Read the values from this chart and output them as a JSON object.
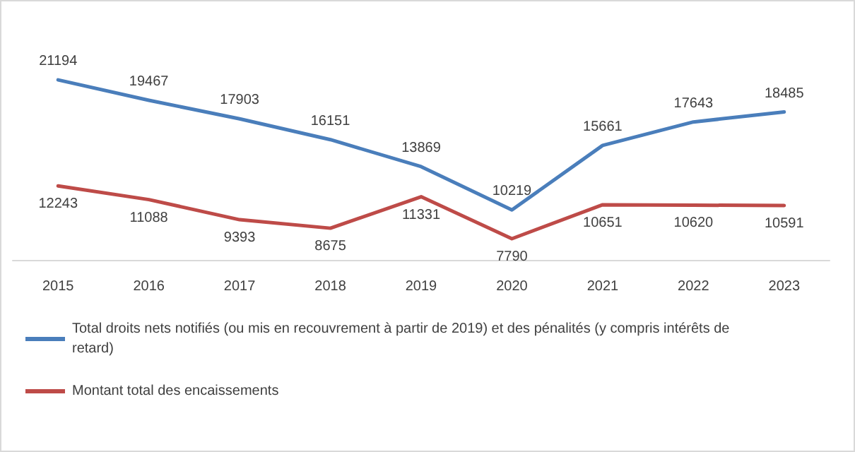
{
  "chart_data": {
    "type": "line",
    "categories": [
      "2015",
      "2016",
      "2017",
      "2018",
      "2019",
      "2020",
      "2021",
      "2022",
      "2023"
    ],
    "series": [
      {
        "name": "Total droits nets notifiés (ou mis en recouvrement à partir de 2019) et des pénalités (y compris intérêts de retard)",
        "color": "#4a7ebb",
        "values": [
          21194,
          19467,
          17903,
          16151,
          13869,
          10219,
          15661,
          17643,
          18485
        ]
      },
      {
        "name": "Montant total des encaissements",
        "color": "#be4b48",
        "values": [
          12243,
          11088,
          9393,
          8675,
          11331,
          7790,
          10651,
          10620,
          10591
        ]
      }
    ],
    "data_labels": true,
    "legend": "bottom",
    "marker": "none",
    "line_style": "solid",
    "tick_labels": "x"
  }
}
